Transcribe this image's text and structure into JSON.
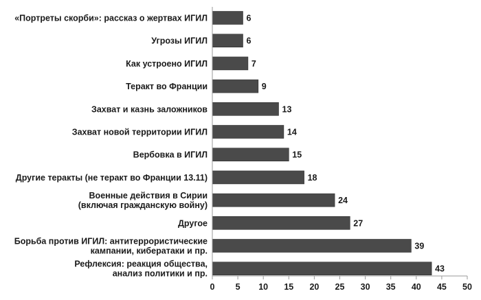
{
  "chart_data": {
    "type": "bar",
    "orientation": "horizontal",
    "categories": [
      [
        "«Портреты скорби»: рассказ о жертвах ИГИЛ"
      ],
      [
        "Угрозы ИГИЛ"
      ],
      [
        "Как устроено ИГИЛ"
      ],
      [
        "Теракт во Франции"
      ],
      [
        "Захват и казнь заложников"
      ],
      [
        "Захват новой территории ИГИЛ"
      ],
      [
        "Вербовка в ИГИЛ"
      ],
      [
        "Другие теракты (не теракт во Франции 13.11)"
      ],
      [
        "Военные действия в Сирии",
        "(включая гражданскую войну)"
      ],
      [
        "Другое"
      ],
      [
        "Борьба против ИГИЛ: антитеррористические",
        "кампании, кибератаки и пр."
      ],
      [
        "Рефлексия: реакция общества,",
        "анализ политики и пр."
      ]
    ],
    "values": [
      6,
      6,
      7,
      9,
      13,
      14,
      15,
      18,
      24,
      27,
      39,
      43
    ],
    "xlim": [
      0,
      50
    ],
    "xticks": [
      0,
      5,
      10,
      15,
      20,
      25,
      30,
      35,
      40,
      45,
      50
    ],
    "grid": false,
    "legend": "none",
    "bar_color": "#4a4a4a",
    "axis_color": "#999999",
    "text_color": "#1a1a1a"
  }
}
